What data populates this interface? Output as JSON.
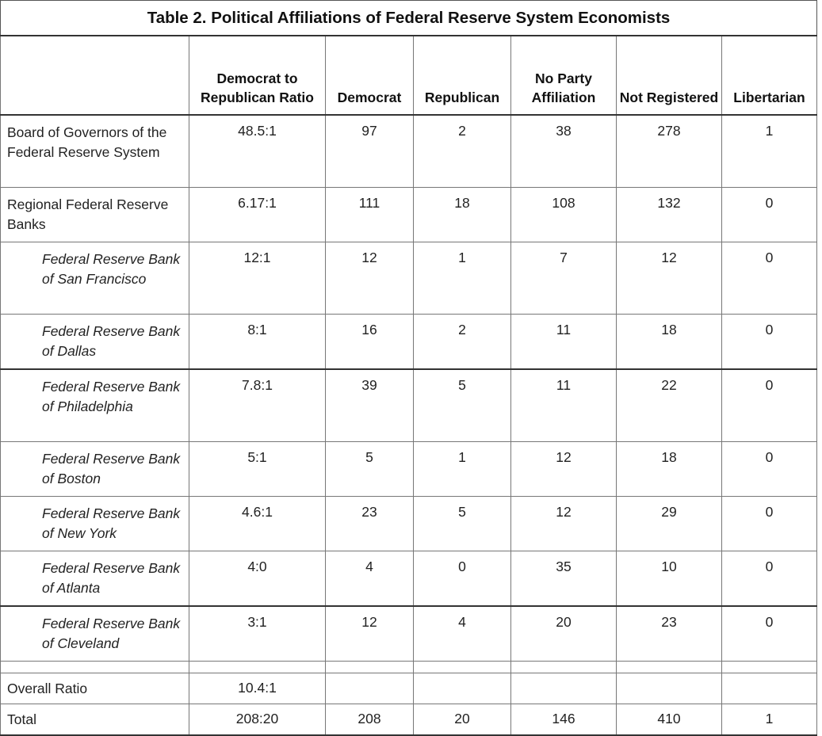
{
  "title": "Table 2. Political Affiliations of Federal Reserve System Economists",
  "headers": {
    "label": "",
    "ratio": "Democrat to Republican Ratio",
    "democrat": "Democrat",
    "republican": "Republican",
    "no_party": "No Party Affiliation",
    "not_registered": "Not Registered",
    "libertarian": "Libertarian"
  },
  "rows": [
    {
      "label": "Board of Governors of the Federal Reserve System",
      "ratio": "48.5:1",
      "democrat": "97",
      "republican": "2",
      "no_party": "38",
      "not_registered": "278",
      "libertarian": "1"
    },
    {
      "label": "Regional Federal Reserve Banks",
      "ratio": "6.17:1",
      "democrat": "111",
      "republican": "18",
      "no_party": "108",
      "not_registered": "132",
      "libertarian": "0"
    },
    {
      "label": "Federal Reserve Bank of San Francisco",
      "ratio": "12:1",
      "democrat": "12",
      "republican": "1",
      "no_party": "7",
      "not_registered": "12",
      "libertarian": "0"
    },
    {
      "label": "Federal Reserve Bank of Dallas",
      "ratio": "8:1",
      "democrat": "16",
      "republican": "2",
      "no_party": "11",
      "not_registered": "18",
      "libertarian": "0"
    },
    {
      "label": "Federal Reserve Bank of Philadelphia",
      "ratio": "7.8:1",
      "democrat": "39",
      "republican": "5",
      "no_party": "11",
      "not_registered": "22",
      "libertarian": "0"
    },
    {
      "label": "Federal Reserve Bank of Boston",
      "ratio": "5:1",
      "democrat": "5",
      "republican": "1",
      "no_party": "12",
      "not_registered": "18",
      "libertarian": "0"
    },
    {
      "label": "Federal Reserve Bank of New York",
      "ratio": "4.6:1",
      "democrat": "23",
      "republican": "5",
      "no_party": "12",
      "not_registered": "29",
      "libertarian": "0"
    },
    {
      "label": "Federal Reserve Bank of Atlanta",
      "ratio": "4:0",
      "democrat": "4",
      "republican": "0",
      "no_party": "35",
      "not_registered": "10",
      "libertarian": "0"
    },
    {
      "label": "Federal Reserve Bank of Cleveland",
      "ratio": "3:1",
      "democrat": "12",
      "republican": "4",
      "no_party": "20",
      "not_registered": "23",
      "libertarian": "0"
    }
  ],
  "overall": {
    "label": "Overall Ratio",
    "ratio": "10.4:1"
  },
  "total": {
    "label": "Total",
    "ratio": "208:20",
    "democrat": "208",
    "republican": "20",
    "no_party": "146",
    "not_registered": "410",
    "libertarian": "1"
  }
}
